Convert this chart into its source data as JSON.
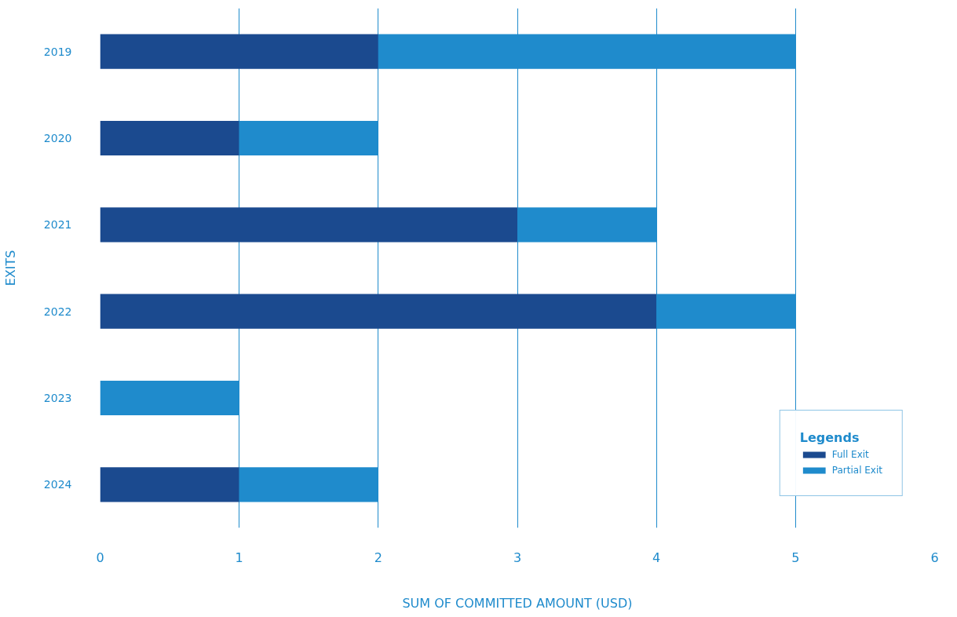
{
  "chart_data": {
    "type": "bar",
    "orientation": "horizontal",
    "stacked": true,
    "xlabel": "SUM OF COMMITTED AMOUNT (USD)",
    "ylabel": "EXITS",
    "legend_title": "Legends",
    "legend": "bottom right",
    "grid": "x",
    "categories": [
      "2019",
      "2020",
      "2021",
      "2022",
      "2023",
      "2024"
    ],
    "series": [
      {
        "name": "Full Exit",
        "color": "#1b4a8f",
        "values": [
          2,
          1,
          3,
          4,
          0,
          1
        ]
      },
      {
        "name": "Partial Exit",
        "color": "#1f8bcc",
        "values": [
          3,
          1,
          1,
          1,
          1,
          1
        ]
      }
    ],
    "xlim": [
      0,
      6
    ],
    "xticks": [
      0,
      1,
      2,
      3,
      4,
      5,
      6
    ]
  }
}
